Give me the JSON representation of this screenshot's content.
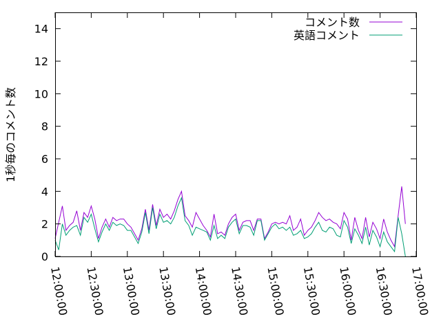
{
  "chart_data": {
    "type": "line",
    "ylabel": "1秒毎のコメント数",
    "xlabel": "",
    "ylim": [
      0,
      15
    ],
    "yticks": [
      0,
      2,
      4,
      6,
      8,
      10,
      12,
      14
    ],
    "xlim": [
      "12:00:00",
      "17:00:00"
    ],
    "xticks": [
      "12:00:00",
      "12:30:00",
      "13:00:00",
      "13:30:00",
      "14:00:00",
      "14:30:00",
      "15:00:00",
      "15:30:00",
      "16:00:00",
      "16:30:00",
      "17:00:00"
    ],
    "grid": false,
    "legend_position": "top-right",
    "colors": {
      "comments": "#9400d3",
      "english": "#009e73"
    },
    "series": [
      {
        "name": "コメント数",
        "points": [
          [
            "12:00:00",
            1.1
          ],
          [
            "12:03:00",
            2.1
          ],
          [
            "12:06:00",
            3.1
          ],
          [
            "12:09:00",
            1.6
          ],
          [
            "12:12:00",
            1.9
          ],
          [
            "12:15:00",
            2.1
          ],
          [
            "12:18:00",
            2.8
          ],
          [
            "12:21:00",
            1.6
          ],
          [
            "12:24:00",
            2.7
          ],
          [
            "12:27:00",
            2.4
          ],
          [
            "12:30:00",
            3.1
          ],
          [
            "12:33:00",
            2.3
          ],
          [
            "12:36:00",
            1.1
          ],
          [
            "12:39:00",
            1.8
          ],
          [
            "12:42:00",
            2.3
          ],
          [
            "12:45:00",
            1.8
          ],
          [
            "12:48:00",
            2.4
          ],
          [
            "12:51:00",
            2.2
          ],
          [
            "12:54:00",
            2.3
          ],
          [
            "12:57:00",
            2.3
          ],
          [
            "13:00:00",
            2.0
          ],
          [
            "13:03:00",
            1.8
          ],
          [
            "13:06:00",
            1.4
          ],
          [
            "13:09:00",
            1.0
          ],
          [
            "13:12:00",
            1.7
          ],
          [
            "13:15:00",
            2.9
          ],
          [
            "13:18:00",
            1.6
          ],
          [
            "13:21:00",
            3.2
          ],
          [
            "13:24:00",
            1.9
          ],
          [
            "13:27:00",
            2.9
          ],
          [
            "13:30:00",
            2.4
          ],
          [
            "13:33:00",
            2.6
          ],
          [
            "13:36:00",
            2.3
          ],
          [
            "13:39:00",
            2.8
          ],
          [
            "13:42:00",
            3.5
          ],
          [
            "13:45:00",
            4.0
          ],
          [
            "13:48:00",
            2.5
          ],
          [
            "13:51:00",
            2.2
          ],
          [
            "13:54:00",
            1.8
          ],
          [
            "13:57:00",
            2.7
          ],
          [
            "14:00:00",
            2.3
          ],
          [
            "14:03:00",
            1.9
          ],
          [
            "14:06:00",
            1.6
          ],
          [
            "14:09:00",
            1.2
          ],
          [
            "14:12:00",
            2.6
          ],
          [
            "14:15:00",
            1.4
          ],
          [
            "14:18:00",
            1.5
          ],
          [
            "14:21:00",
            1.3
          ],
          [
            "14:24:00",
            2.0
          ],
          [
            "14:27:00",
            2.4
          ],
          [
            "14:30:00",
            2.6
          ],
          [
            "14:33:00",
            1.6
          ],
          [
            "14:36:00",
            2.1
          ],
          [
            "14:39:00",
            2.2
          ],
          [
            "14:42:00",
            2.2
          ],
          [
            "14:45:00",
            1.6
          ],
          [
            "14:48:00",
            2.3
          ],
          [
            "14:51:00",
            2.3
          ],
          [
            "14:54:00",
            1.1
          ],
          [
            "14:57:00",
            1.5
          ],
          [
            "15:00:00",
            2.0
          ],
          [
            "15:03:00",
            2.1
          ],
          [
            "15:06:00",
            2.0
          ],
          [
            "15:09:00",
            2.1
          ],
          [
            "15:12:00",
            2.0
          ],
          [
            "15:15:00",
            2.5
          ],
          [
            "15:18:00",
            1.6
          ],
          [
            "15:21:00",
            1.8
          ],
          [
            "15:24:00",
            2.3
          ],
          [
            "15:27:00",
            1.3
          ],
          [
            "15:30:00",
            1.6
          ],
          [
            "15:33:00",
            1.8
          ],
          [
            "15:36:00",
            2.2
          ],
          [
            "15:39:00",
            2.7
          ],
          [
            "15:42:00",
            2.4
          ],
          [
            "15:45:00",
            2.2
          ],
          [
            "15:48:00",
            2.3
          ],
          [
            "15:51:00",
            2.1
          ],
          [
            "15:54:00",
            2.0
          ],
          [
            "15:57:00",
            1.7
          ],
          [
            "16:00:00",
            2.7
          ],
          [
            "16:03:00",
            2.3
          ],
          [
            "16:06:00",
            1.0
          ],
          [
            "16:09:00",
            2.4
          ],
          [
            "16:12:00",
            1.6
          ],
          [
            "16:15:00",
            1.1
          ],
          [
            "16:18:00",
            2.4
          ],
          [
            "16:21:00",
            1.2
          ],
          [
            "16:24:00",
            2.1
          ],
          [
            "16:27:00",
            1.7
          ],
          [
            "16:30:00",
            1.1
          ],
          [
            "16:33:00",
            2.3
          ],
          [
            "16:36:00",
            1.5
          ],
          [
            "16:39:00",
            1.0
          ],
          [
            "16:42:00",
            0.6
          ],
          [
            "16:45:00",
            2.5
          ],
          [
            "16:48:00",
            4.3
          ],
          [
            "16:51:00",
            2.0
          ]
        ]
      },
      {
        "name": "英語コメント",
        "points": [
          [
            "12:00:00",
            1.0
          ],
          [
            "12:03:00",
            0.4
          ],
          [
            "12:06:00",
            2.0
          ],
          [
            "12:09:00",
            1.3
          ],
          [
            "12:12:00",
            1.6
          ],
          [
            "12:15:00",
            1.8
          ],
          [
            "12:18:00",
            1.9
          ],
          [
            "12:21:00",
            1.3
          ],
          [
            "12:24:00",
            2.4
          ],
          [
            "12:27:00",
            2.1
          ],
          [
            "12:30:00",
            2.6
          ],
          [
            "12:33:00",
            1.7
          ],
          [
            "12:36:00",
            0.9
          ],
          [
            "12:39:00",
            1.5
          ],
          [
            "12:42:00",
            2.0
          ],
          [
            "12:45:00",
            1.6
          ],
          [
            "12:48:00",
            2.1
          ],
          [
            "12:51:00",
            1.9
          ],
          [
            "12:54:00",
            2.0
          ],
          [
            "12:57:00",
            1.9
          ],
          [
            "13:00:00",
            1.6
          ],
          [
            "13:03:00",
            1.6
          ],
          [
            "13:06:00",
            1.2
          ],
          [
            "13:09:00",
            0.8
          ],
          [
            "13:12:00",
            1.5
          ],
          [
            "13:15:00",
            2.7
          ],
          [
            "13:18:00",
            1.4
          ],
          [
            "13:21:00",
            3.0
          ],
          [
            "13:24:00",
            1.7
          ],
          [
            "13:27:00",
            2.6
          ],
          [
            "13:30:00",
            2.1
          ],
          [
            "13:33:00",
            2.2
          ],
          [
            "13:36:00",
            2.0
          ],
          [
            "13:39:00",
            2.4
          ],
          [
            "13:42:00",
            3.1
          ],
          [
            "13:45:00",
            3.6
          ],
          [
            "13:48:00",
            2.2
          ],
          [
            "13:51:00",
            1.9
          ],
          [
            "13:54:00",
            1.3
          ],
          [
            "13:57:00",
            1.8
          ],
          [
            "14:00:00",
            1.7
          ],
          [
            "14:03:00",
            1.6
          ],
          [
            "14:06:00",
            1.5
          ],
          [
            "14:09:00",
            1.0
          ],
          [
            "14:12:00",
            1.9
          ],
          [
            "14:15:00",
            1.1
          ],
          [
            "14:18:00",
            1.3
          ],
          [
            "14:21:00",
            1.1
          ],
          [
            "14:24:00",
            1.8
          ],
          [
            "14:27:00",
            2.1
          ],
          [
            "14:30:00",
            2.3
          ],
          [
            "14:33:00",
            1.4
          ],
          [
            "14:36:00",
            1.9
          ],
          [
            "14:39:00",
            1.9
          ],
          [
            "14:42:00",
            1.8
          ],
          [
            "14:45:00",
            1.3
          ],
          [
            "14:48:00",
            2.2
          ],
          [
            "14:51:00",
            2.2
          ],
          [
            "14:54:00",
            1.0
          ],
          [
            "14:57:00",
            1.4
          ],
          [
            "15:00:00",
            1.8
          ],
          [
            "15:03:00",
            2.0
          ],
          [
            "15:06:00",
            1.7
          ],
          [
            "15:09:00",
            1.8
          ],
          [
            "15:12:00",
            1.6
          ],
          [
            "15:15:00",
            1.8
          ],
          [
            "15:18:00",
            1.3
          ],
          [
            "15:21:00",
            1.4
          ],
          [
            "15:24:00",
            1.6
          ],
          [
            "15:27:00",
            1.1
          ],
          [
            "15:30:00",
            1.2
          ],
          [
            "15:33:00",
            1.4
          ],
          [
            "15:36:00",
            1.8
          ],
          [
            "15:39:00",
            2.1
          ],
          [
            "15:42:00",
            1.6
          ],
          [
            "15:45:00",
            1.5
          ],
          [
            "15:48:00",
            1.8
          ],
          [
            "15:51:00",
            1.7
          ],
          [
            "15:54:00",
            1.3
          ],
          [
            "15:57:00",
            1.2
          ],
          [
            "16:00:00",
            2.2
          ],
          [
            "16:03:00",
            1.8
          ],
          [
            "16:06:00",
            0.8
          ],
          [
            "16:09:00",
            1.7
          ],
          [
            "16:12:00",
            1.3
          ],
          [
            "16:15:00",
            0.8
          ],
          [
            "16:18:00",
            1.8
          ],
          [
            "16:21:00",
            0.7
          ],
          [
            "16:24:00",
            1.6
          ],
          [
            "16:27:00",
            1.2
          ],
          [
            "16:30:00",
            0.6
          ],
          [
            "16:33:00",
            1.5
          ],
          [
            "16:36:00",
            0.9
          ],
          [
            "16:39:00",
            0.6
          ],
          [
            "16:42:00",
            0.3
          ],
          [
            "16:45:00",
            2.4
          ],
          [
            "16:48:00",
            1.4
          ],
          [
            "16:51:00",
            0.0
          ]
        ]
      }
    ]
  }
}
